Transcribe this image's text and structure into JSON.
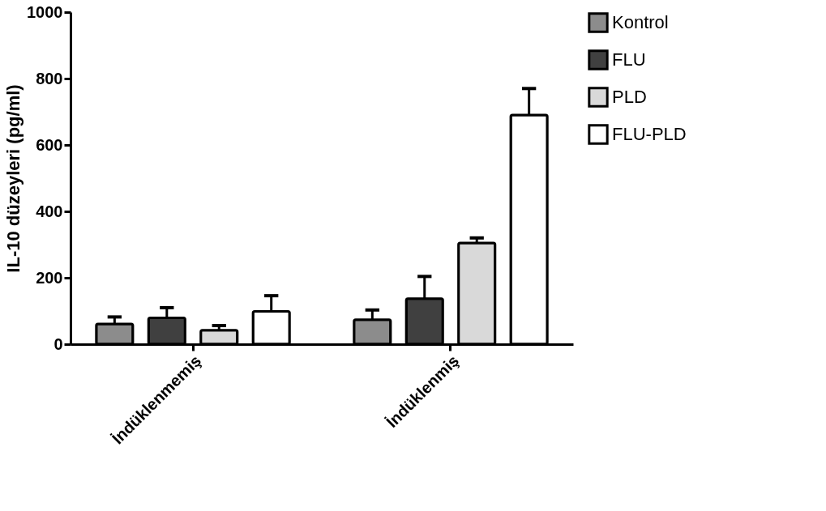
{
  "chart_data": {
    "type": "bar",
    "ylabel": "IL-10 düzeyleri (pg/ml)",
    "categories": [
      "İndüklenmemiş",
      "İndüklenmiş"
    ],
    "ylim": [
      0,
      1000
    ],
    "yticks": [
      0,
      200,
      400,
      600,
      800,
      1000
    ],
    "grid": false,
    "legend": "top right",
    "series": [
      {
        "name": "Kontrol",
        "color": "#8c8c8c",
        "values": [
          61,
          74
        ],
        "errors": [
          [
            61,
            82
          ],
          [
            74,
            103
          ]
        ]
      },
      {
        "name": "FLU",
        "color": "#404040",
        "values": [
          79,
          137
        ],
        "errors": [
          [
            79,
            110
          ],
          [
            137,
            204
          ]
        ]
      },
      {
        "name": "PLD",
        "color": "#d9d9d9",
        "values": [
          42,
          305
        ],
        "errors": [
          [
            42,
            56
          ],
          [
            305,
            320
          ]
        ]
      },
      {
        "name": "FLU-PLD",
        "color": "#ffffff",
        "values": [
          99,
          690
        ],
        "errors": [
          [
            99,
            146
          ],
          [
            690,
            770
          ]
        ]
      }
    ]
  }
}
